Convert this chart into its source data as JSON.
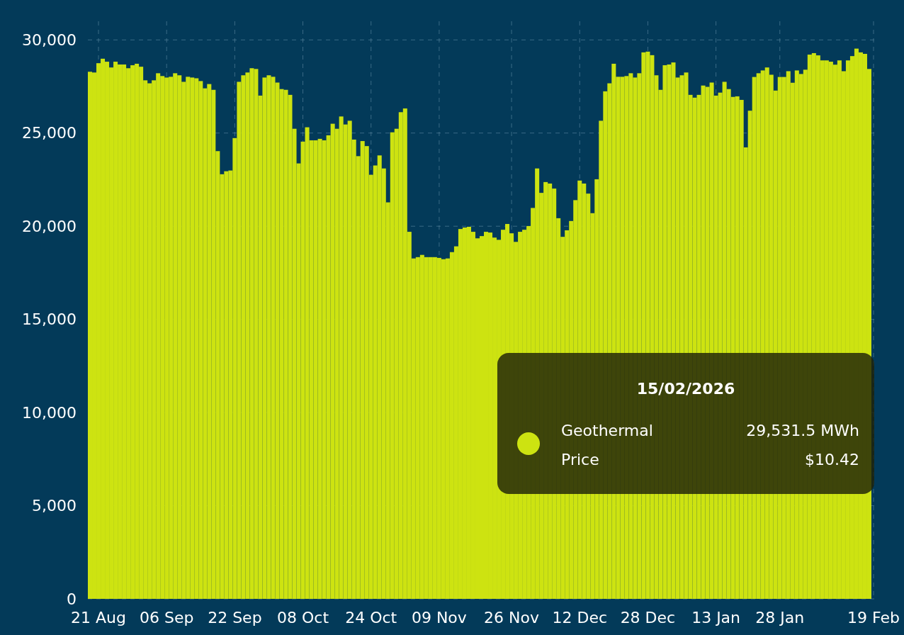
{
  "chart_data": {
    "type": "bar",
    "x": [
      "2025-08-19",
      "2025-08-20",
      "2025-08-21",
      "2025-08-22",
      "2025-08-23",
      "2025-08-24",
      "2025-08-25",
      "2025-08-26",
      "2025-08-27",
      "2025-08-28",
      "2025-08-29",
      "2025-08-30",
      "2025-08-31",
      "2025-09-01",
      "2025-09-02",
      "2025-09-03",
      "2025-09-04",
      "2025-09-05",
      "2025-09-06",
      "2025-09-07",
      "2025-09-08",
      "2025-09-09",
      "2025-09-10",
      "2025-09-11",
      "2025-09-12",
      "2025-09-13",
      "2025-09-14",
      "2025-09-15",
      "2025-09-16",
      "2025-09-17",
      "2025-09-18",
      "2025-09-19",
      "2025-09-20",
      "2025-09-21",
      "2025-09-22",
      "2025-09-23",
      "2025-09-24",
      "2025-09-25",
      "2025-09-26",
      "2025-09-27",
      "2025-09-28",
      "2025-09-29",
      "2025-09-30",
      "2025-10-01",
      "2025-10-02",
      "2025-10-03",
      "2025-10-04",
      "2025-10-05",
      "2025-10-06",
      "2025-10-07",
      "2025-10-08",
      "2025-10-09",
      "2025-10-10",
      "2025-10-11",
      "2025-10-12",
      "2025-10-13",
      "2025-10-14",
      "2025-10-15",
      "2025-10-16",
      "2025-10-17",
      "2025-10-18",
      "2025-10-19",
      "2025-10-20",
      "2025-10-21",
      "2025-10-22",
      "2025-10-23",
      "2025-10-24",
      "2025-10-25",
      "2025-10-26",
      "2025-10-27",
      "2025-10-28",
      "2025-10-29",
      "2025-10-30",
      "2025-10-31",
      "2025-11-01",
      "2025-11-02",
      "2025-11-03",
      "2025-11-04",
      "2025-11-05",
      "2025-11-06",
      "2025-11-07",
      "2025-11-08",
      "2025-11-09",
      "2025-11-10",
      "2025-11-11",
      "2025-11-12",
      "2025-11-13",
      "2025-11-14",
      "2025-11-15",
      "2025-11-16",
      "2025-11-17",
      "2025-11-18",
      "2025-11-19",
      "2025-11-20",
      "2025-11-21",
      "2025-11-22",
      "2025-11-23",
      "2025-11-24",
      "2025-11-25",
      "2025-11-26",
      "2025-11-27",
      "2025-11-28",
      "2025-11-29",
      "2025-11-30",
      "2025-12-01",
      "2025-12-02",
      "2025-12-03",
      "2025-12-04",
      "2025-12-05",
      "2025-12-06",
      "2025-12-07",
      "2025-12-08",
      "2025-12-09",
      "2025-12-10",
      "2025-12-11",
      "2025-12-12",
      "2025-12-13",
      "2025-12-14",
      "2025-12-15",
      "2025-12-16",
      "2025-12-17",
      "2025-12-18",
      "2025-12-19",
      "2025-12-20",
      "2025-12-21",
      "2025-12-22",
      "2025-12-23",
      "2025-12-24",
      "2025-12-25",
      "2025-12-26",
      "2025-12-27",
      "2025-12-28",
      "2025-12-29",
      "2025-12-30",
      "2025-12-31",
      "2026-01-01",
      "2026-01-02",
      "2026-01-03",
      "2026-01-04",
      "2026-01-05",
      "2026-01-06",
      "2026-01-07",
      "2026-01-08",
      "2026-01-09",
      "2026-01-10",
      "2026-01-11",
      "2026-01-12",
      "2026-01-13",
      "2026-01-14",
      "2026-01-15",
      "2026-01-16",
      "2026-01-17",
      "2026-01-18",
      "2026-01-19",
      "2026-01-20",
      "2026-01-21",
      "2026-01-22",
      "2026-01-23",
      "2026-01-24",
      "2026-01-25",
      "2026-01-26",
      "2026-01-27",
      "2026-01-28",
      "2026-01-29",
      "2026-01-30",
      "2026-01-31",
      "2026-02-01",
      "2026-02-02",
      "2026-02-03",
      "2026-02-04",
      "2026-02-05",
      "2026-02-06",
      "2026-02-07",
      "2026-02-08",
      "2026-02-09",
      "2026-02-10",
      "2026-02-11",
      "2026-02-12",
      "2026-02-13",
      "2026-02-14",
      "2026-02-15",
      "2026-02-16",
      "2026-02-17",
      "2026-02-18"
    ],
    "series": [
      {
        "name": "Geothermal",
        "color": "#cde311",
        "values": [
          28290,
          28250,
          28750,
          28990,
          28830,
          28520,
          28830,
          28680,
          28680,
          28480,
          28640,
          28720,
          28560,
          27830,
          27670,
          27830,
          28210,
          28060,
          27980,
          28020,
          28210,
          28100,
          27750,
          28020,
          27980,
          27940,
          27790,
          27400,
          27630,
          27320,
          24030,
          22790,
          22950,
          22990,
          24730,
          27750,
          28100,
          28250,
          28480,
          28440,
          27010,
          27980,
          28100,
          28020,
          27710,
          27360,
          27320,
          27050,
          25230,
          23370,
          24540,
          25310,
          24610,
          24610,
          24690,
          24610,
          24880,
          25500,
          25230,
          25890,
          25460,
          25660,
          24650,
          23760,
          24570,
          24300,
          22760,
          23260,
          23800,
          23100,
          21280,
          25040,
          25230,
          26120,
          26320,
          19700,
          18270,
          18340,
          18460,
          18340,
          18340,
          18340,
          18300,
          18230,
          18270,
          18610,
          18920,
          19850,
          19930,
          19970,
          19700,
          19350,
          19470,
          19700,
          19660,
          19390,
          19270,
          19810,
          20120,
          19620,
          19160,
          19700,
          19810,
          20010,
          20980,
          23100,
          21790,
          22370,
          22290,
          22020,
          20430,
          19430,
          19780,
          20280,
          21400,
          22450,
          22290,
          21750,
          20700,
          22520,
          25660,
          27240,
          27670,
          28720,
          28020,
          28020,
          28060,
          28210,
          27980,
          28210,
          29330,
          29370,
          29180,
          28100,
          27320,
          28640,
          28680,
          28790,
          27980,
          28100,
          28250,
          27050,
          26900,
          27050,
          27550,
          27480,
          27710,
          27010,
          27170,
          27750,
          27360,
          26940,
          26970,
          26780,
          24230,
          26200,
          28010,
          28210,
          28360,
          28520,
          28130,
          27280,
          28010,
          28010,
          28320,
          27700,
          28360,
          28170,
          28400,
          29210,
          29290,
          29170,
          28900,
          28900,
          28830,
          28670,
          28900,
          28320,
          28900,
          29130,
          29531.5,
          29330,
          29250,
          28440
        ]
      }
    ],
    "xlim": [
      "2025-08-18T12:00",
      "2026-02-19T12:00"
    ],
    "xticks": [
      {
        "value": "2025-08-21",
        "label": "21 Aug"
      },
      {
        "value": "2025-09-06",
        "label": "06 Sep"
      },
      {
        "value": "2025-09-22",
        "label": "22 Sep"
      },
      {
        "value": "2025-10-08",
        "label": "08 Oct"
      },
      {
        "value": "2025-10-24",
        "label": "24 Oct"
      },
      {
        "value": "2025-11-09",
        "label": "09 Nov"
      },
      {
        "value": "2025-11-26",
        "label": "26 Nov"
      },
      {
        "value": "2025-12-12",
        "label": "12 Dec"
      },
      {
        "value": "2025-12-28",
        "label": "28 Dec"
      },
      {
        "value": "2026-01-13",
        "label": "13 Jan"
      },
      {
        "value": "2026-01-28",
        "label": "28 Jan"
      },
      {
        "value": "2026-02-19",
        "label": "19 Feb"
      }
    ],
    "ylim": [
      0,
      31000
    ],
    "yticks": [
      0,
      {
        "value": 5000,
        "label": "5,000"
      },
      {
        "value": 10000,
        "label": "10,000"
      },
      {
        "value": 15000,
        "label": "15,000"
      },
      {
        "value": 20000,
        "label": "20,000"
      },
      {
        "value": 25000,
        "label": "25,000"
      },
      {
        "value": 30000,
        "label": "30,000"
      }
    ],
    "grid": true,
    "annotations": [
      "15/02/2026",
      "29,531.5 MWh",
      "Price",
      "$10.42"
    ]
  }
}
